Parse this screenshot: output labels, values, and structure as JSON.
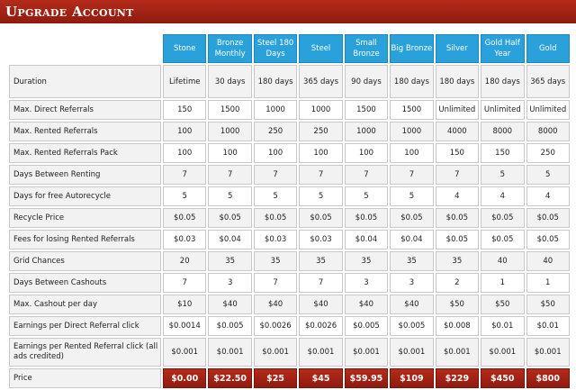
{
  "header": {
    "title": "Upgrade Account"
  },
  "plans": [
    "Stone",
    "Bronze Monthly",
    "Steel 180 Days",
    "Steel",
    "Small Bronze",
    "Big Bronze",
    "Silver",
    "Gold Half Year",
    "Gold"
  ],
  "rows": [
    {
      "label": "Duration",
      "values": [
        "Lifetime",
        "30 days",
        "180 days",
        "365 days",
        "90 days",
        "180 days",
        "180 days",
        "180 days",
        "365 days"
      ]
    },
    {
      "label": "Max. Direct Referrals",
      "values": [
        "150",
        "1500",
        "1000",
        "1000",
        "1500",
        "1500",
        "Unlimited",
        "Unlimited",
        "Unlimited"
      ]
    },
    {
      "label": "Max. Rented Referrals",
      "values": [
        "100",
        "1000",
        "250",
        "250",
        "1000",
        "1000",
        "4000",
        "8000",
        "8000"
      ]
    },
    {
      "label": "Max. Rented Referrals Pack",
      "values": [
        "100",
        "100",
        "100",
        "100",
        "100",
        "100",
        "150",
        "150",
        "250"
      ]
    },
    {
      "label": "Days Between Renting",
      "values": [
        "7",
        "7",
        "7",
        "7",
        "7",
        "7",
        "7",
        "5",
        "5"
      ]
    },
    {
      "label": "Days for free Autorecycle",
      "values": [
        "5",
        "5",
        "5",
        "5",
        "5",
        "5",
        "4",
        "4",
        "4"
      ]
    },
    {
      "label": "Recycle Price",
      "values": [
        "$0.05",
        "$0.05",
        "$0.05",
        "$0.05",
        "$0.05",
        "$0.05",
        "$0.05",
        "$0.05",
        "$0.05"
      ]
    },
    {
      "label": "Fees for losing Rented Referrals",
      "values": [
        "$0.03",
        "$0.04",
        "$0.03",
        "$0.03",
        "$0.04",
        "$0.04",
        "$0.05",
        "$0.05",
        "$0.05"
      ]
    },
    {
      "label": "Grid Chances",
      "values": [
        "20",
        "35",
        "35",
        "35",
        "35",
        "35",
        "35",
        "40",
        "40"
      ]
    },
    {
      "label": "Days Between Cashouts",
      "values": [
        "7",
        "3",
        "7",
        "7",
        "3",
        "3",
        "2",
        "1",
        "1"
      ]
    },
    {
      "label": "Max. Cashout per day",
      "values": [
        "$10",
        "$40",
        "$40",
        "$40",
        "$40",
        "$40",
        "$50",
        "$50",
        "$50"
      ]
    },
    {
      "label": "Earnings per Direct Referral click",
      "values": [
        "$0.0014",
        "$0.005",
        "$0.0026",
        "$0.0026",
        "$0.005",
        "$0.005",
        "$0.008",
        "$0.01",
        "$0.01"
      ]
    },
    {
      "label": "Earnings per Rented Referral click (all ads credited)",
      "values": [
        "$0.001",
        "$0.001",
        "$0.001",
        "$0.001",
        "$0.001",
        "$0.001",
        "$0.001",
        "$0.001",
        "$0.001"
      ]
    }
  ],
  "price": {
    "label": "Price",
    "values": [
      "$0.00",
      "$22.50",
      "$25",
      "$45",
      "$59.95",
      "$109",
      "$229",
      "$450",
      "$800"
    ]
  },
  "colors": {
    "header_red": "#9e2212",
    "plan_blue": "#2aa1db"
  }
}
